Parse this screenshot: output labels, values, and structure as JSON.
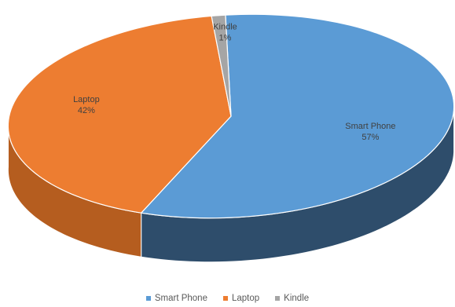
{
  "chart_data": {
    "type": "pie",
    "style": "3d",
    "title": "",
    "legend_position": "bottom",
    "slices": [
      {
        "label": "Smart Phone",
        "percent_label": "57%",
        "value": 57,
        "color": "#5B9BD5",
        "side_color": "#2E4D6B"
      },
      {
        "label": "Laptop",
        "percent_label": "42%",
        "value": 42,
        "color": "#ED7D31",
        "side_color": "#B55D1F"
      },
      {
        "label": "Kindle",
        "percent_label": "1%",
        "value": 1,
        "color": "#A5A5A5",
        "side_color": "#7A7A7A"
      }
    ]
  }
}
